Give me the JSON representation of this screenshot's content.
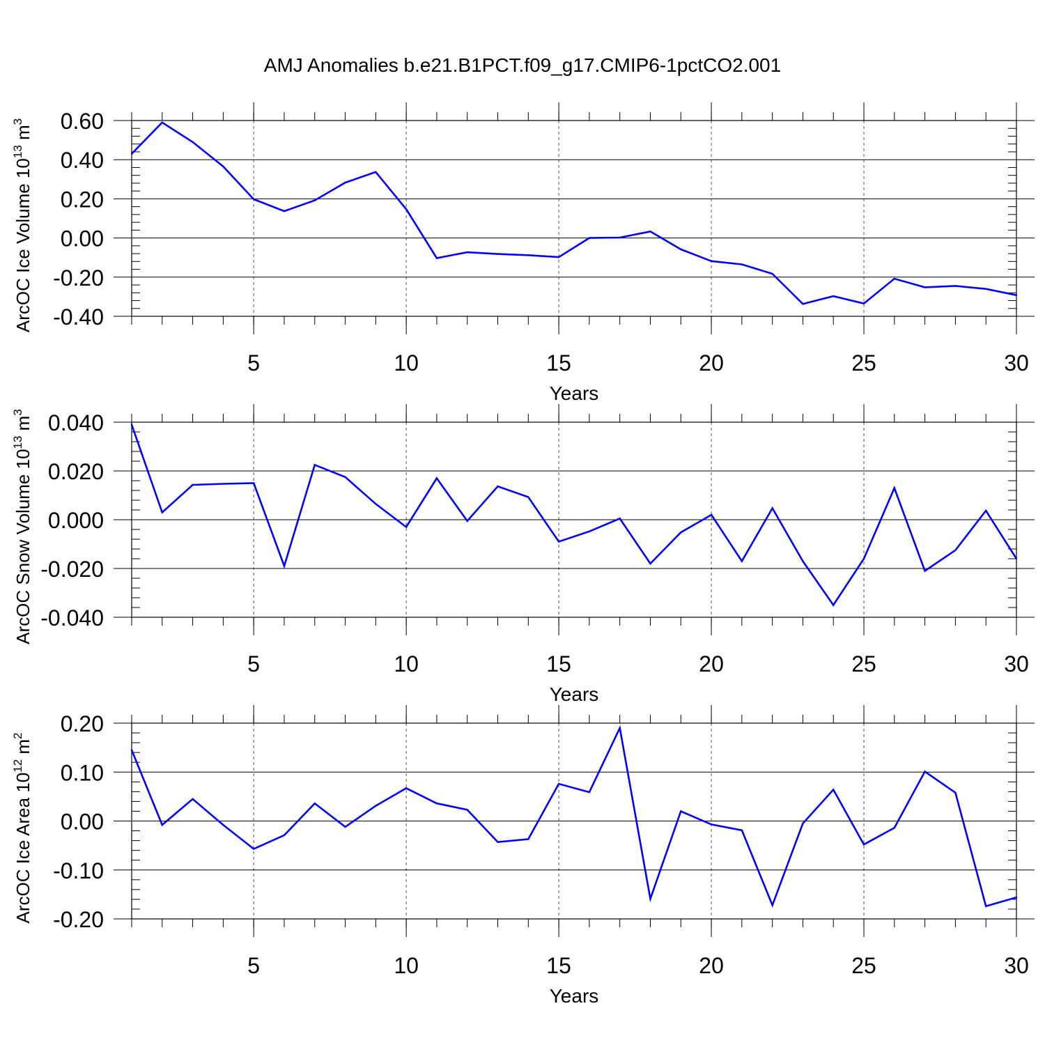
{
  "title": "AMJ Anomalies b.e21.B1PCT.f09_g17.CMIP6-1pctCO2.001",
  "chart_data": [
    {
      "type": "line",
      "ylabel_main": "ArcOC Ice Volume 10",
      "ylabel_sup": "13",
      "ylabel_unit": " m",
      "ylabel_unit_sup": "3",
      "xlabel": "Years",
      "x": [
        1,
        2,
        3,
        4,
        5,
        6,
        7,
        8,
        9,
        10,
        11,
        12,
        13,
        14,
        15,
        16,
        17,
        18,
        19,
        20,
        21,
        22,
        23,
        24,
        25,
        26,
        27,
        28,
        29,
        30
      ],
      "values": [
        0.43,
        0.59,
        0.49,
        0.365,
        0.198,
        0.137,
        0.192,
        0.283,
        0.337,
        0.147,
        -0.103,
        -0.073,
        -0.082,
        -0.088,
        -0.098,
        0.0,
        0.002,
        0.033,
        -0.058,
        -0.118,
        -0.135,
        -0.183,
        -0.337,
        -0.297,
        -0.335,
        -0.208,
        -0.252,
        -0.245,
        -0.26,
        -0.292
      ],
      "xlim": [
        1,
        30
      ],
      "ylim": [
        -0.4,
        0.6
      ],
      "yticks": [
        -0.4,
        -0.2,
        0.0,
        0.2,
        0.4,
        0.6
      ],
      "ytick_labels": [
        "-0.40",
        "-0.20",
        "0.00",
        "0.20",
        "0.40",
        "0.60"
      ],
      "xticks": [
        5,
        10,
        15,
        20,
        25,
        30
      ],
      "xtick_labels": [
        "5",
        "10",
        "15",
        "20",
        "25",
        "30"
      ],
      "line_color": "#0000ff"
    },
    {
      "type": "line",
      "ylabel_main": "ArcOC Snow Volume 10",
      "ylabel_sup": "13",
      "ylabel_unit": " m",
      "ylabel_unit_sup": "3",
      "xlabel": "Years",
      "x": [
        1,
        2,
        3,
        4,
        5,
        6,
        7,
        8,
        9,
        10,
        11,
        12,
        13,
        14,
        15,
        16,
        17,
        18,
        19,
        20,
        21,
        22,
        23,
        24,
        25,
        26,
        27,
        28,
        29,
        30
      ],
      "values": [
        0.039,
        0.003,
        0.0143,
        0.0147,
        0.015,
        -0.019,
        0.0225,
        0.0175,
        0.0065,
        -0.003,
        0.017,
        -0.0005,
        0.0137,
        0.0093,
        -0.009,
        -0.0048,
        0.0005,
        -0.018,
        -0.0052,
        0.002,
        -0.017,
        0.0047,
        -0.017,
        -0.035,
        -0.016,
        0.013,
        -0.021,
        -0.0125,
        0.0037,
        -0.016
      ],
      "xlim": [
        1,
        30
      ],
      "ylim": [
        -0.04,
        0.04
      ],
      "yticks": [
        -0.04,
        -0.02,
        0.0,
        0.02,
        0.04
      ],
      "ytick_labels": [
        "-0.040",
        "-0.020",
        "0.000",
        "0.020",
        "0.040"
      ],
      "xticks": [
        5,
        10,
        15,
        20,
        25,
        30
      ],
      "xtick_labels": [
        "5",
        "10",
        "15",
        "20",
        "25",
        "30"
      ],
      "line_color": "#0000ff"
    },
    {
      "type": "line",
      "ylabel_main": "ArcOC Ice Area 10",
      "ylabel_sup": "12",
      "ylabel_unit": " m",
      "ylabel_unit_sup": "2",
      "xlabel": "Years",
      "x": [
        1,
        2,
        3,
        4,
        5,
        6,
        7,
        8,
        9,
        10,
        11,
        12,
        13,
        14,
        15,
        16,
        17,
        18,
        19,
        20,
        21,
        22,
        23,
        24,
        25,
        26,
        27,
        28,
        29,
        30
      ],
      "values": [
        0.145,
        -0.008,
        0.045,
        -0.008,
        -0.057,
        -0.029,
        0.036,
        -0.012,
        0.031,
        0.067,
        0.036,
        0.023,
        -0.043,
        -0.037,
        0.076,
        0.059,
        0.19,
        -0.159,
        0.02,
        -0.007,
        -0.019,
        -0.172,
        -0.005,
        0.064,
        -0.048,
        -0.014,
        0.101,
        0.058,
        -0.174,
        -0.156
      ],
      "xlim": [
        1,
        30
      ],
      "ylim": [
        -0.2,
        0.2
      ],
      "yticks": [
        -0.2,
        -0.1,
        0.0,
        0.1,
        0.2
      ],
      "ytick_labels": [
        "-0.20",
        "-0.10",
        "0.00",
        "0.10",
        "0.20"
      ],
      "xticks": [
        5,
        10,
        15,
        20,
        25,
        30
      ],
      "xtick_labels": [
        "5",
        "10",
        "15",
        "20",
        "25",
        "30"
      ],
      "line_color": "#0000ff"
    }
  ]
}
